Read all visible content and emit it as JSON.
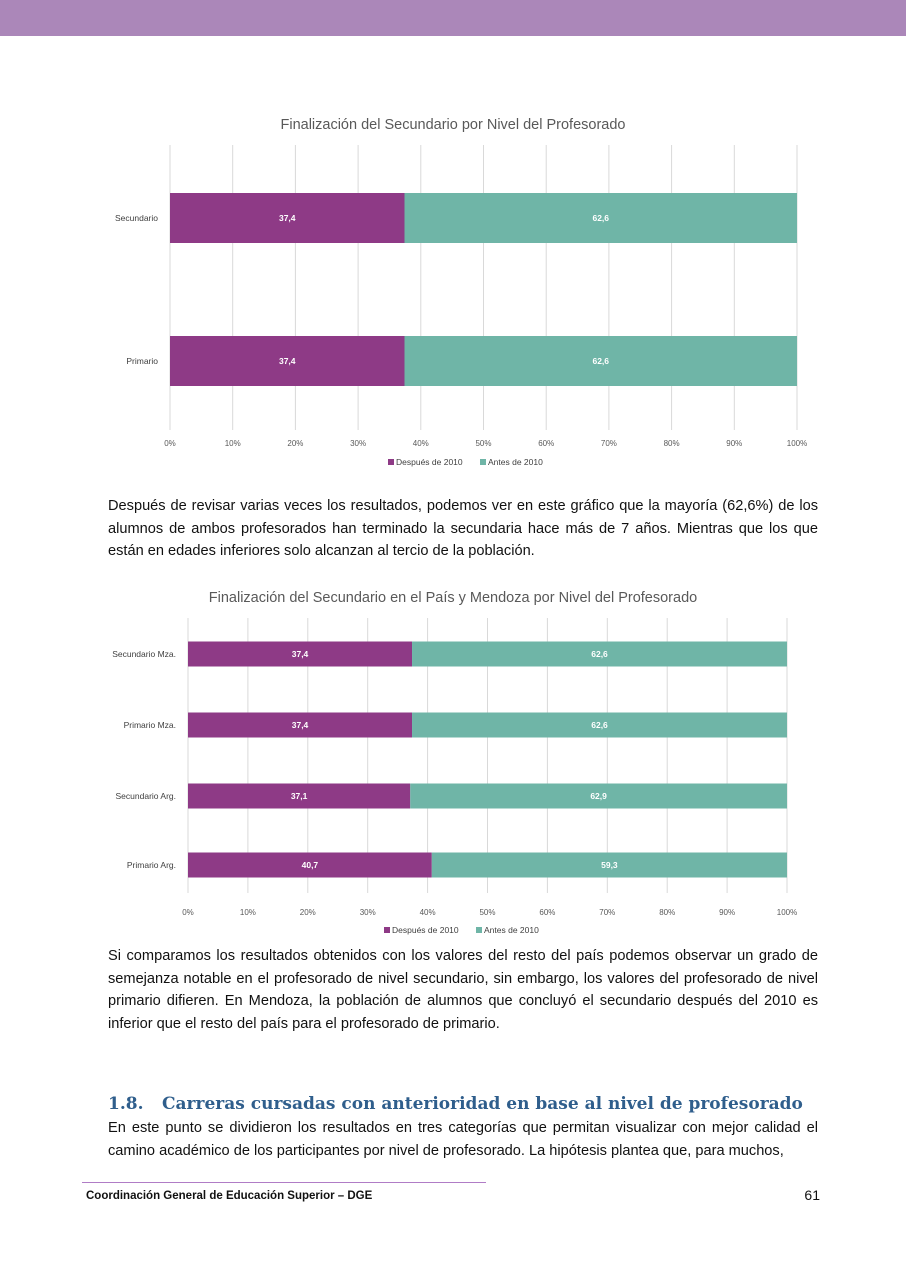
{
  "chart_data": [
    {
      "type": "bar",
      "orientation": "horizontal",
      "stacked": true,
      "title": "Finalización del Secundario por Nivel del Profesorado",
      "categories": [
        "Secundario",
        "Primario"
      ],
      "series": [
        {
          "name": "Después de 2010",
          "values": [
            37.4,
            37.4
          ],
          "labels": [
            "37,4",
            "37,4"
          ],
          "color": "#8e3a86"
        },
        {
          "name": "Antes de 2010",
          "values": [
            62.6,
            62.6
          ],
          "labels": [
            "62,6",
            "62,6"
          ],
          "color": "#6fb5a7"
        }
      ],
      "xlim": [
        0,
        100
      ],
      "xticks": [
        "0%",
        "10%",
        "20%",
        "30%",
        "40%",
        "50%",
        "60%",
        "70%",
        "80%",
        "90%",
        "100%"
      ],
      "grid": true,
      "legend": "bottom"
    },
    {
      "type": "bar",
      "orientation": "horizontal",
      "stacked": true,
      "title": "Finalización del Secundario en el País y Mendoza por Nivel del Profesorado",
      "categories": [
        "Secundario Mza.",
        "Primario Mza.",
        "Secundario Arg.",
        "Primario Arg."
      ],
      "series": [
        {
          "name": "Después de 2010",
          "values": [
            37.4,
            37.4,
            37.1,
            40.7
          ],
          "labels": [
            "37,4",
            "37,4",
            "37,1",
            "40,7"
          ],
          "color": "#8e3a86"
        },
        {
          "name": "Antes de 2010",
          "values": [
            62.6,
            62.6,
            62.9,
            59.3
          ],
          "labels": [
            "62,6",
            "62,6",
            "62,9",
            "59,3"
          ],
          "color": "#6fb5a7"
        }
      ],
      "xlim": [
        0,
        100
      ],
      "xticks": [
        "0%",
        "10%",
        "20%",
        "30%",
        "40%",
        "50%",
        "60%",
        "70%",
        "80%",
        "90%",
        "100%"
      ],
      "grid": true,
      "legend": "bottom"
    }
  ],
  "body": {
    "para1": "Después de revisar varias veces los resultados, podemos ver en este gráfico que la mayoría (62,6%) de los alumnos de ambos profesorados han terminado la secundaria hace más de 7 años. Mientras que los que están en edades inferiores solo alcanzan al tercio de la población.",
    "para2": "Si comparamos los resultados obtenidos con los valores del resto del país podemos observar un grado de semejanza notable en el profesorado de nivel secundario, sin embargo, los valores del profesorado de nivel primario difieren. En Mendoza, la población de alumnos que concluyó el secundario después del 2010 es inferior que el resto del país para el profesorado de primario.",
    "section_number": "1.8.",
    "section_title": "Carreras cursadas con anterioridad en base al nivel de profesorado",
    "para3": "En este punto se dividieron los resultados en tres categorías que permitan visualizar con mejor calidad el camino académico de los participantes por nivel de profesorado. La hipótesis plantea que, para muchos,"
  },
  "footer": {
    "organization": "Coordinación General de Educación Superior – DGE",
    "page_number": "61"
  }
}
